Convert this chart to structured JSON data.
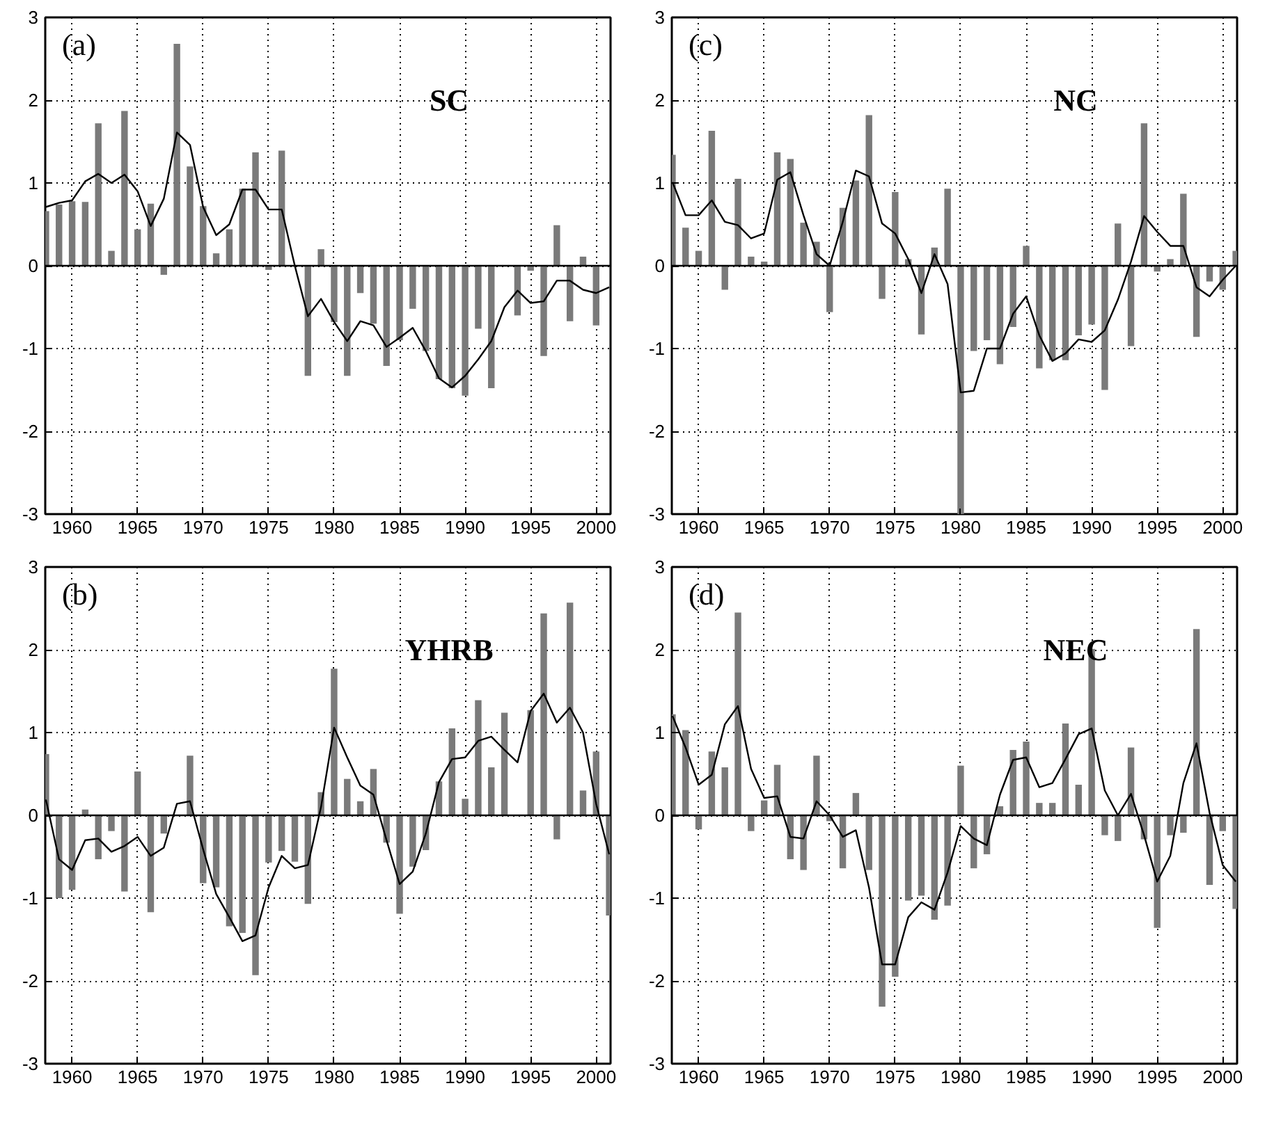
{
  "chart_data": [
    {
      "type": "bar",
      "annotations": [
        "(a)",
        "SC"
      ],
      "x": [
        1958,
        1959,
        1960,
        1961,
        1962,
        1963,
        1964,
        1965,
        1966,
        1967,
        1968,
        1969,
        1970,
        1971,
        1972,
        1973,
        1974,
        1975,
        1976,
        1977,
        1978,
        1979,
        1980,
        1981,
        1982,
        1983,
        1984,
        1985,
        1986,
        1987,
        1988,
        1989,
        1990,
        1991,
        1992,
        1993,
        1994,
        1995,
        1996,
        1997,
        1998,
        1999,
        2000,
        2001
      ],
      "xlim": [
        1957.95,
        2001.1
      ],
      "ylim": [
        -3,
        3
      ],
      "xticks": [
        1960,
        1965,
        1970,
        1975,
        1980,
        1985,
        1990,
        1995,
        2000
      ],
      "yticks": [
        -3,
        -2,
        -1,
        0,
        1,
        2,
        3
      ],
      "grid": true,
      "line_style": "solid",
      "series": [
        {
          "color": "#7a7a7a",
          "values": [
            0.66,
            0.74,
            0.78,
            0.77,
            1.72,
            0.18,
            1.87,
            0.44,
            0.75,
            -0.11,
            2.68,
            1.2,
            0.72,
            0.15,
            0.44,
            0.93,
            1.37,
            -0.05,
            1.39,
            0.0,
            -1.33,
            0.2,
            -0.68,
            -1.33,
            -0.33,
            -0.7,
            -1.21,
            -0.9,
            -0.52,
            -1.03,
            -1.37,
            -1.48,
            -1.57,
            -0.76,
            -1.48,
            0.0,
            -0.6,
            -0.06,
            -1.09,
            0.49,
            -0.67,
            0.11,
            -0.72,
            null
          ]
        },
        {
          "type": "line",
          "color": "#000000",
          "values": [
            0.71,
            0.76,
            0.79,
            1.02,
            1.11,
            1.0,
            1.1,
            0.9,
            0.48,
            0.81,
            1.61,
            1.46,
            0.71,
            0.37,
            0.5,
            0.92,
            0.92,
            0.68,
            0.68,
            0.0,
            -0.61,
            -0.4,
            -0.68,
            -0.91,
            -0.67,
            -0.72,
            -0.98,
            -0.87,
            -0.75,
            -1.03,
            -1.36,
            -1.47,
            -1.33,
            -1.13,
            -0.91,
            -0.5,
            -0.3,
            -0.45,
            -0.43,
            -0.18,
            -0.18,
            -0.29,
            -0.33,
            -0.26
          ]
        }
      ]
    },
    {
      "type": "bar",
      "annotations": [
        "(c)",
        "NC"
      ],
      "x": [
        1958,
        1959,
        1960,
        1961,
        1962,
        1963,
        1964,
        1965,
        1966,
        1967,
        1968,
        1969,
        1970,
        1971,
        1972,
        1973,
        1974,
        1975,
        1976,
        1977,
        1978,
        1979,
        1980,
        1981,
        1982,
        1983,
        1984,
        1985,
        1986,
        1987,
        1988,
        1989,
        1990,
        1991,
        1992,
        1993,
        1994,
        1995,
        1996,
        1997,
        1998,
        1999,
        2000,
        2001
      ],
      "xlim": [
        1957.95,
        2001.1
      ],
      "ylim": [
        -3,
        3
      ],
      "xticks": [
        1960,
        1965,
        1970,
        1975,
        1980,
        1985,
        1990,
        1995,
        2000
      ],
      "yticks": [
        -3,
        -2,
        -1,
        0,
        1,
        2,
        3
      ],
      "grid": true,
      "line_style": "solid",
      "series": [
        {
          "color": "#7a7a7a",
          "values": [
            1.34,
            0.46,
            0.18,
            1.63,
            -0.29,
            1.05,
            0.11,
            0.05,
            1.37,
            1.29,
            0.52,
            0.29,
            -0.56,
            0.7,
            1.03,
            1.82,
            -0.4,
            0.89,
            0.08,
            -0.83,
            0.22,
            0.93,
            -3.0,
            -1.03,
            -0.9,
            -1.19,
            -0.74,
            0.24,
            -1.24,
            -1.14,
            -1.14,
            -0.84,
            -0.71,
            -1.5,
            0.51,
            -0.97,
            1.72,
            -0.07,
            0.08,
            0.87,
            -0.86,
            -0.19,
            -0.29,
            0.18
          ]
        },
        {
          "type": "line",
          "color": "#000000",
          "values": [
            1.01,
            0.61,
            0.61,
            0.79,
            0.53,
            0.49,
            0.33,
            0.39,
            1.04,
            1.13,
            0.61,
            0.14,
            0.0,
            0.53,
            1.15,
            1.08,
            0.51,
            0.39,
            0.08,
            -0.33,
            0.14,
            -0.22,
            -1.53,
            -1.51,
            -1.0,
            -1.0,
            -0.58,
            -0.37,
            -0.84,
            -1.15,
            -1.06,
            -0.89,
            -0.92,
            -0.78,
            -0.41,
            0.05,
            0.6,
            0.41,
            0.24,
            0.24,
            -0.26,
            -0.37,
            -0.17,
            0.0
          ]
        }
      ]
    },
    {
      "type": "bar",
      "annotations": [
        "(b)",
        "YHRB"
      ],
      "x": [
        1958,
        1959,
        1960,
        1961,
        1962,
        1963,
        1964,
        1965,
        1966,
        1967,
        1968,
        1969,
        1970,
        1971,
        1972,
        1973,
        1974,
        1975,
        1976,
        1977,
        1978,
        1979,
        1980,
        1981,
        1982,
        1983,
        1984,
        1985,
        1986,
        1987,
        1988,
        1989,
        1990,
        1991,
        1992,
        1993,
        1994,
        1995,
        1996,
        1997,
        1998,
        1999,
        2000,
        2001
      ],
      "xlim": [
        1957.95,
        2001.1
      ],
      "ylim": [
        -3,
        3
      ],
      "xticks": [
        1960,
        1965,
        1970,
        1975,
        1980,
        1985,
        1990,
        1995,
        2000
      ],
      "yticks": [
        -3,
        -2,
        -1,
        0,
        1,
        2,
        3
      ],
      "grid": true,
      "line_style": "solid",
      "series": [
        {
          "color": "#7a7a7a",
          "values": [
            0.74,
            -1.0,
            -0.9,
            0.07,
            -0.53,
            -0.19,
            -0.92,
            0.53,
            -1.17,
            -0.22,
            0.0,
            0.72,
            -0.82,
            -0.87,
            -1.34,
            -1.42,
            -1.93,
            -0.57,
            -0.43,
            -0.56,
            -1.07,
            0.28,
            1.77,
            0.44,
            0.17,
            0.56,
            -0.33,
            -1.19,
            -0.62,
            -0.42,
            0.41,
            1.05,
            0.2,
            1.39,
            0.58,
            1.24,
            0.0,
            1.27,
            2.44,
            -0.29,
            2.57,
            0.3,
            0.77,
            -1.21
          ]
        },
        {
          "type": "line",
          "color": "#000000",
          "values": [
            0.19,
            -0.53,
            -0.66,
            -0.3,
            -0.28,
            -0.44,
            -0.37,
            -0.26,
            -0.49,
            -0.39,
            0.14,
            0.17,
            -0.41,
            -0.95,
            -1.23,
            -1.52,
            -1.45,
            -0.87,
            -0.49,
            -0.64,
            -0.6,
            0.1,
            1.06,
            0.7,
            0.36,
            0.25,
            -0.3,
            -0.83,
            -0.68,
            -0.22,
            0.4,
            0.68,
            0.7,
            0.9,
            0.95,
            0.79,
            0.64,
            1.26,
            1.47,
            1.12,
            1.3,
            1.0,
            0.14,
            -0.47
          ]
        }
      ]
    },
    {
      "type": "bar",
      "annotations": [
        "(d)",
        "NEC"
      ],
      "x": [
        1958,
        1959,
        1960,
        1961,
        1962,
        1963,
        1964,
        1965,
        1966,
        1967,
        1968,
        1969,
        1970,
        1971,
        1972,
        1973,
        1974,
        1975,
        1976,
        1977,
        1978,
        1979,
        1980,
        1981,
        1982,
        1983,
        1984,
        1985,
        1986,
        1987,
        1988,
        1989,
        1990,
        1991,
        1992,
        1993,
        1994,
        1995,
        1996,
        1997,
        1998,
        1999,
        2000,
        2001
      ],
      "xlim": [
        1957.95,
        2001.1
      ],
      "ylim": [
        -3,
        3
      ],
      "xticks": [
        1960,
        1965,
        1970,
        1975,
        1980,
        1985,
        1990,
        1995,
        2000
      ],
      "yticks": [
        -3,
        -2,
        -1,
        0,
        1,
        2,
        3
      ],
      "grid": true,
      "line_style": "solid",
      "series": [
        {
          "color": "#7a7a7a",
          "values": [
            1.22,
            1.03,
            -0.17,
            0.77,
            0.58,
            2.45,
            -0.19,
            0.18,
            0.61,
            -0.53,
            -0.66,
            0.72,
            -0.07,
            -0.64,
            0.27,
            -0.66,
            -2.31,
            -1.95,
            -1.03,
            -0.97,
            -1.26,
            -1.09,
            0.6,
            -0.64,
            -0.47,
            0.11,
            0.79,
            0.89,
            0.15,
            0.15,
            1.11,
            0.37,
            2.01,
            -0.24,
            -0.31,
            0.82,
            -0.29,
            -1.36,
            -0.24,
            -0.21,
            2.25,
            -0.84,
            -0.19,
            -1.13
          ]
        },
        {
          "type": "line",
          "color": "#000000",
          "values": [
            1.2,
            0.82,
            0.37,
            0.49,
            1.1,
            1.32,
            0.56,
            0.21,
            0.23,
            -0.26,
            -0.28,
            0.17,
            0.0,
            -0.26,
            -0.18,
            -0.87,
            -1.8,
            -1.8,
            -1.23,
            -1.05,
            -1.14,
            -0.69,
            -0.13,
            -0.28,
            -0.36,
            0.25,
            0.67,
            0.7,
            0.34,
            0.39,
            0.68,
            0.98,
            1.05,
            0.3,
            0.0,
            0.26,
            -0.24,
            -0.8,
            -0.49,
            0.39,
            0.87,
            0.03,
            -0.6,
            -0.8
          ]
        }
      ]
    }
  ]
}
